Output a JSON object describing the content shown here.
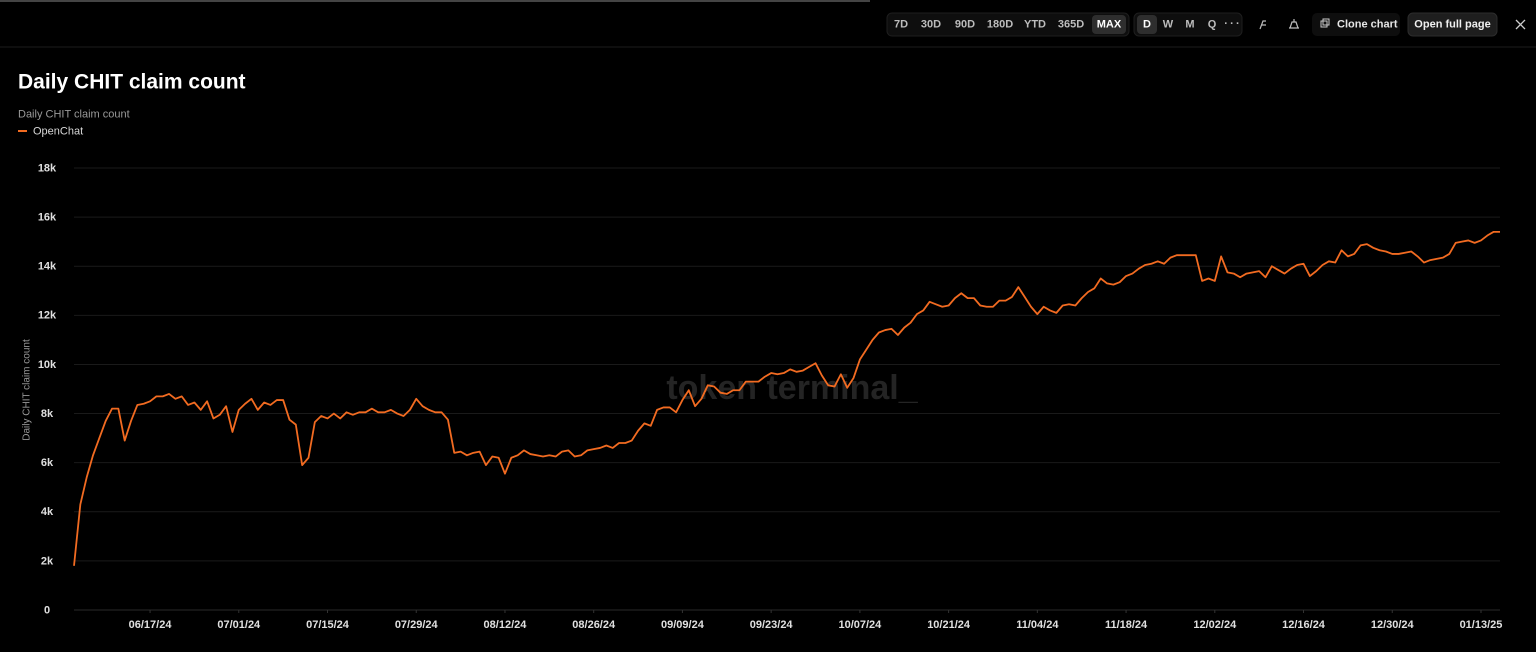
{
  "toolbar": {
    "ranges": [
      "7D",
      "30D",
      "90D",
      "180D",
      "YTD",
      "365D",
      "MAX"
    ],
    "granularity": [
      "D",
      "W",
      "M",
      "Q"
    ],
    "clone": "Clone chart",
    "open": "Open full page"
  },
  "chart_data": {
    "type": "line",
    "title": "Daily CHIT claim count",
    "subtitle": "Daily CHIT claim count",
    "y_label": "Daily CHIT claim count",
    "watermark": "token terminal_",
    "x": [
      "06/05/24",
      "06/06/24",
      "06/07/24",
      "06/08/24",
      "06/09/24",
      "06/10/24",
      "06/11/24",
      "06/12/24",
      "06/13/24",
      "06/14/24",
      "06/15/24",
      "06/16/24",
      "06/17/24",
      "06/18/24",
      "06/19/24",
      "06/20/24",
      "06/21/24",
      "06/22/24",
      "06/23/24",
      "06/24/24",
      "06/25/24",
      "06/26/24",
      "06/27/24",
      "06/28/24",
      "06/29/24",
      "06/30/24",
      "07/01/24",
      "07/02/24",
      "07/03/24",
      "07/04/24",
      "07/05/24",
      "07/06/24",
      "07/07/24",
      "07/08/24",
      "07/09/24",
      "07/10/24",
      "07/11/24",
      "07/12/24",
      "07/13/24",
      "07/14/24",
      "07/15/24",
      "07/16/24",
      "07/17/24",
      "07/18/24",
      "07/19/24",
      "07/20/24",
      "07/21/24",
      "07/22/24",
      "07/23/24",
      "07/24/24",
      "07/25/24",
      "07/26/24",
      "07/27/24",
      "07/28/24",
      "07/29/24",
      "07/30/24",
      "07/31/24",
      "08/01/24",
      "08/02/24",
      "08/03/24",
      "08/04/24",
      "08/05/24",
      "08/06/24",
      "08/07/24",
      "08/08/24",
      "08/09/24",
      "08/10/24",
      "08/11/24",
      "08/12/24",
      "08/13/24",
      "08/14/24",
      "08/15/24",
      "08/16/24",
      "08/17/24",
      "08/18/24",
      "08/19/24",
      "08/20/24",
      "08/21/24",
      "08/22/24",
      "08/23/24",
      "08/24/24",
      "08/25/24",
      "08/26/24",
      "08/27/24",
      "08/28/24",
      "08/29/24",
      "08/30/24",
      "08/31/24",
      "09/01/24",
      "09/02/24",
      "09/03/24",
      "09/04/24",
      "09/05/24",
      "09/06/24",
      "09/07/24",
      "09/08/24",
      "09/09/24",
      "09/10/24",
      "09/11/24",
      "09/12/24",
      "09/13/24",
      "09/14/24",
      "09/15/24",
      "09/16/24",
      "09/17/24",
      "09/18/24",
      "09/19/24",
      "09/20/24",
      "09/21/24",
      "09/22/24",
      "09/23/24",
      "09/24/24",
      "09/25/24",
      "09/26/24",
      "09/27/24",
      "09/28/24",
      "09/29/24",
      "09/30/24",
      "10/01/24",
      "10/02/24",
      "10/03/24",
      "10/04/24",
      "10/05/24",
      "10/06/24",
      "10/07/24",
      "10/08/24",
      "10/09/24",
      "10/10/24",
      "10/11/24",
      "10/12/24",
      "10/13/24",
      "10/14/24",
      "10/15/24",
      "10/16/24",
      "10/17/24",
      "10/18/24",
      "10/19/24",
      "10/20/24",
      "10/21/24",
      "10/22/24",
      "10/23/24",
      "10/24/24",
      "10/25/24",
      "10/26/24",
      "10/27/24",
      "10/28/24",
      "10/29/24",
      "10/30/24",
      "10/31/24",
      "11/01/24",
      "11/02/24",
      "11/03/24",
      "11/04/24",
      "11/05/24",
      "11/06/24",
      "11/07/24",
      "11/08/24",
      "11/09/24",
      "11/10/24",
      "11/11/24",
      "11/12/24",
      "11/13/24",
      "11/14/24",
      "11/15/24",
      "11/16/24",
      "11/17/24",
      "11/18/24",
      "11/19/24",
      "11/20/24",
      "11/21/24",
      "11/22/24",
      "11/23/24",
      "11/24/24",
      "11/25/24",
      "11/26/24",
      "11/27/24",
      "11/28/24",
      "11/29/24",
      "11/30/24",
      "12/01/24",
      "12/02/24",
      "12/03/24",
      "12/04/24",
      "12/05/24",
      "12/06/24",
      "12/07/24",
      "12/08/24",
      "12/09/24",
      "12/10/24",
      "12/11/24",
      "12/12/24",
      "12/13/24",
      "12/14/24",
      "12/15/24",
      "12/16/24",
      "12/17/24",
      "12/18/24",
      "12/19/24",
      "12/20/24",
      "12/21/24",
      "12/22/24",
      "12/23/24",
      "12/24/24",
      "12/25/24",
      "12/26/24",
      "12/27/24",
      "12/28/24",
      "12/29/24",
      "12/30/24",
      "12/31/24",
      "01/01/25",
      "01/02/25",
      "01/03/25",
      "01/04/25",
      "01/05/25",
      "01/06/25",
      "01/07/25",
      "01/08/25",
      "01/09/25",
      "01/10/25",
      "01/11/25",
      "01/12/25",
      "01/13/25",
      "01/14/25",
      "01/15/25",
      "01/16/25"
    ],
    "series": [
      {
        "name": "OpenChat",
        "color": "#f26b21",
        "values": [
          1800,
          4300,
          5400,
          6300,
          7000,
          7700,
          8200,
          8200,
          6900,
          7700,
          8350,
          8400,
          8500,
          8700,
          8700,
          8800,
          8600,
          8700,
          8350,
          8450,
          8150,
          8500,
          7800,
          7950,
          8300,
          7250,
          8150,
          8400,
          8600,
          8150,
          8450,
          8350,
          8550,
          8550,
          7750,
          7550,
          5900,
          6200,
          7650,
          7900,
          7800,
          8000,
          7800,
          8050,
          7950,
          8050,
          8050,
          8200,
          8050,
          8050,
          8150,
          8000,
          7900,
          8150,
          8600,
          8300,
          8150,
          8050,
          8050,
          7750,
          6400,
          6450,
          6300,
          6400,
          6450,
          5900,
          6250,
          6200,
          5550,
          6200,
          6300,
          6500,
          6350,
          6300,
          6250,
          6300,
          6250,
          6450,
          6500,
          6250,
          6300,
          6500,
          6550,
          6600,
          6700,
          6600,
          6800,
          6800,
          6900,
          7300,
          7600,
          7500,
          8150,
          8250,
          8250,
          8050,
          8550,
          8950,
          8300,
          8600,
          9150,
          9100,
          8850,
          8800,
          8950,
          8950,
          9300,
          9300,
          9300,
          9500,
          9650,
          9600,
          9650,
          9800,
          9700,
          9750,
          9900,
          10050,
          9550,
          9150,
          9100,
          9600,
          9050,
          9450,
          10200,
          10600,
          11000,
          11300,
          11400,
          11450,
          11200,
          11500,
          11700,
          12050,
          12200,
          12550,
          12450,
          12350,
          12400,
          12700,
          12900,
          12700,
          12700,
          12400,
          12350,
          12350,
          12600,
          12600,
          12750,
          13150,
          12750,
          12350,
          12050,
          12350,
          12200,
          12100,
          12400,
          12450,
          12400,
          12700,
          12950,
          13100,
          13500,
          13300,
          13250,
          13350,
          13600,
          13700,
          13900,
          14050,
          14100,
          14200,
          14100,
          14350,
          14450,
          14450,
          14450,
          14450,
          13400,
          13500,
          13400,
          14400,
          13750,
          13700,
          13550,
          13700,
          13750,
          13800,
          13550,
          14000,
          13850,
          13700,
          13900,
          14050,
          14100,
          13600,
          13800,
          14050,
          14200,
          14150,
          14650,
          14400,
          14500,
          14850,
          14900,
          14750,
          14650,
          14600,
          14500,
          14500,
          14550,
          14600,
          14400,
          14150,
          14250,
          14300,
          14350,
          14500,
          14950,
          15000,
          15050,
          14950,
          15050,
          15250,
          15400,
          15400
        ]
      }
    ],
    "xlim": [
      "06/05/24",
      "01/16/25"
    ],
    "xticks": [
      "06/17/24",
      "07/01/24",
      "07/15/24",
      "07/29/24",
      "08/12/24",
      "08/26/24",
      "09/09/24",
      "09/23/24",
      "10/07/24",
      "10/21/24",
      "11/04/24",
      "11/18/24",
      "12/02/24",
      "12/16/24",
      "12/30/24",
      "01/13/25"
    ],
    "ylim": [
      0,
      18000
    ],
    "yticks": [
      0,
      {
        "value": 2000,
        "label": "2k"
      },
      {
        "value": 4000,
        "label": "4k"
      },
      {
        "value": 6000,
        "label": "6k"
      },
      {
        "value": 8000,
        "label": "8k"
      },
      {
        "value": 10000,
        "label": "10k"
      },
      {
        "value": 12000,
        "label": "12k"
      },
      {
        "value": 14000,
        "label": "14k"
      },
      {
        "value": 16000,
        "label": "16k"
      },
      {
        "value": 18000,
        "label": "18k"
      }
    ],
    "grid": true
  }
}
